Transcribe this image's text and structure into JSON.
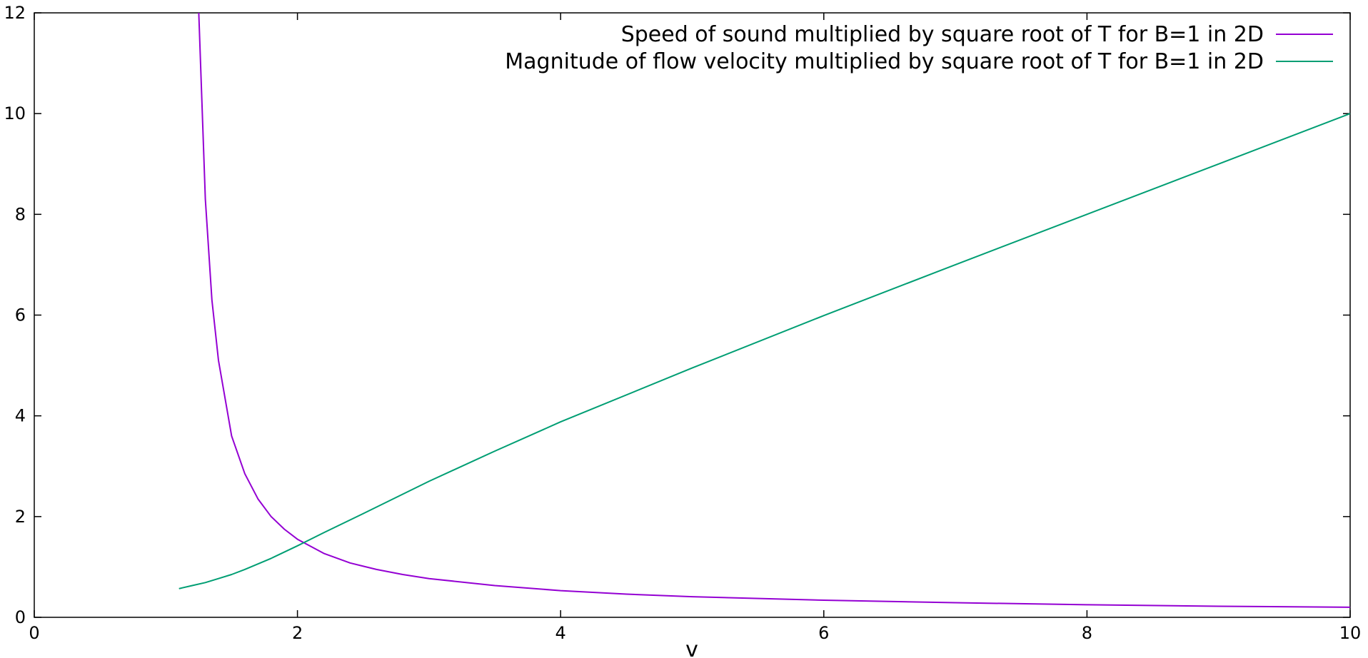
{
  "chart_data": {
    "type": "line",
    "xlabel": "v",
    "ylabel": "",
    "xlim": [
      0,
      10
    ],
    "ylim": [
      0,
      12
    ],
    "grid": false,
    "legend_position": "top-right",
    "x_ticks": [
      "0",
      "2",
      "4",
      "6",
      "8",
      "10"
    ],
    "y_ticks": [
      "0",
      "2",
      "4",
      "6",
      "8",
      "10",
      "12"
    ],
    "series": [
      {
        "name": "Speed of sound multiplied by square root of T for B=1 in 2D",
        "color": "#9400d3",
        "x": [
          1.25,
          1.3,
          1.35,
          1.4,
          1.5,
          1.6,
          1.7,
          1.8,
          1.9,
          2.0,
          2.2,
          2.4,
          2.6,
          2.8,
          3.0,
          3.5,
          4.0,
          4.5,
          5.0,
          6.0,
          7.0,
          8.0,
          9.0,
          10.0
        ],
        "y": [
          12.0,
          8.3,
          6.3,
          5.1,
          3.6,
          2.85,
          2.35,
          2.0,
          1.75,
          1.55,
          1.27,
          1.08,
          0.95,
          0.85,
          0.77,
          0.63,
          0.53,
          0.46,
          0.41,
          0.34,
          0.29,
          0.25,
          0.22,
          0.2
        ]
      },
      {
        "name": "Magnitude of flow velocity multiplied by square root of T for B=1 in 2D",
        "color": "#009e73",
        "x": [
          1.1,
          1.2,
          1.3,
          1.4,
          1.5,
          1.6,
          1.7,
          1.8,
          2.0,
          2.2,
          2.5,
          3.0,
          3.5,
          4.0,
          5.0,
          6.0,
          7.0,
          8.0,
          9.0,
          10.0
        ],
        "y": [
          0.57,
          0.63,
          0.69,
          0.77,
          0.85,
          0.95,
          1.06,
          1.17,
          1.42,
          1.68,
          2.06,
          2.7,
          3.3,
          3.88,
          4.95,
          5.99,
          7.0,
          8.0,
          9.0,
          10.0
        ]
      }
    ]
  }
}
